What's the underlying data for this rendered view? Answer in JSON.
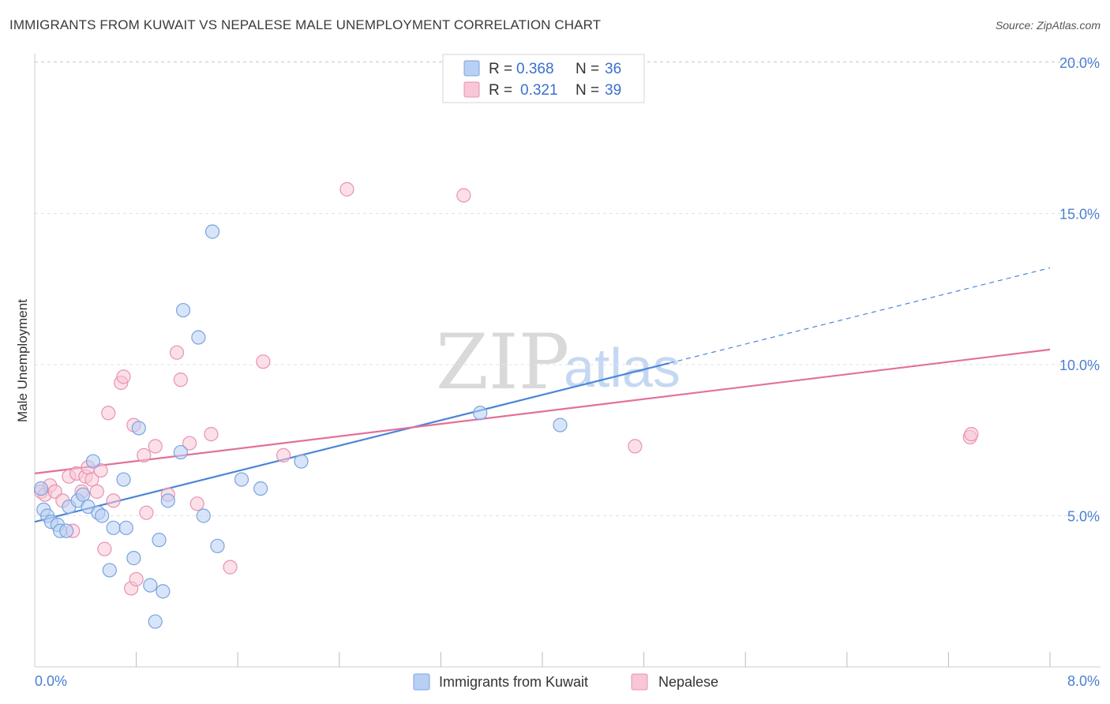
{
  "title": "IMMIGRANTS FROM KUWAIT VS NEPALESE MALE UNEMPLOYMENT CORRELATION CHART",
  "source": "Source: ZipAtlas.com",
  "watermark": {
    "zip": "ZIP",
    "atlas": "atlas"
  },
  "colors": {
    "blue": "#4a86d8",
    "blue_fill": "#b8d0f3",
    "pink": "#e3709a",
    "pink_fill": "#f8c6d6",
    "tick": "#4a7fd4"
  },
  "legend": {
    "rows": [
      {
        "r_label": "R =",
        "r_value": "0.368",
        "n_label": "N =",
        "n_value": "36"
      },
      {
        "r_label": "R =",
        "r_value": "0.321",
        "n_label": "N =",
        "n_value": "39"
      }
    ]
  },
  "bottom_legend": [
    "Immigrants from Kuwait",
    "Nepalese"
  ],
  "chart_data": {
    "type": "scatter",
    "ylabel": "Male Unemployment",
    "xlim": [
      0,
      8
    ],
    "ylim": [
      0,
      20.5
    ],
    "x_tick_labels": [
      "0.0%",
      "8.0%"
    ],
    "y_ticks": [
      5,
      10,
      15,
      20
    ],
    "y_tick_labels": [
      "5.0%",
      "10.0%",
      "15.0%",
      "20.0%"
    ],
    "grid": true,
    "legend_position": "top-center",
    "series": [
      {
        "name": "Immigrants from Kuwait",
        "color": "#4a86d8",
        "trend": {
          "x0": 0.0,
          "y0": 4.8,
          "x1": 8.0,
          "y1": 13.2,
          "solid_until": 5.0
        },
        "points": [
          [
            0.05,
            5.9
          ],
          [
            0.07,
            5.2
          ],
          [
            0.1,
            5.0
          ],
          [
            0.13,
            4.8
          ],
          [
            0.18,
            4.7
          ],
          [
            0.2,
            4.5
          ],
          [
            0.25,
            4.5
          ],
          [
            0.27,
            5.3
          ],
          [
            0.34,
            5.5
          ],
          [
            0.38,
            5.7
          ],
          [
            0.42,
            5.3
          ],
          [
            0.46,
            6.8
          ],
          [
            0.5,
            5.1
          ],
          [
            0.53,
            5.0
          ],
          [
            0.59,
            3.2
          ],
          [
            0.62,
            4.6
          ],
          [
            0.7,
            6.2
          ],
          [
            0.72,
            4.6
          ],
          [
            0.78,
            3.6
          ],
          [
            0.82,
            7.9
          ],
          [
            0.91,
            2.7
          ],
          [
            0.95,
            1.5
          ],
          [
            0.98,
            4.2
          ],
          [
            1.01,
            2.5
          ],
          [
            1.05,
            5.5
          ],
          [
            1.15,
            7.1
          ],
          [
            1.17,
            11.8
          ],
          [
            1.29,
            10.9
          ],
          [
            1.33,
            5.0
          ],
          [
            1.4,
            14.4
          ],
          [
            1.44,
            4.0
          ],
          [
            1.63,
            6.2
          ],
          [
            1.78,
            5.9
          ],
          [
            2.1,
            6.8
          ],
          [
            3.51,
            8.4
          ],
          [
            4.14,
            8.0
          ]
        ]
      },
      {
        "name": "Nepalese",
        "color": "#e3709a",
        "trend": {
          "x0": 0.0,
          "y0": 6.4,
          "x1": 8.0,
          "y1": 10.5
        },
        "points": [
          [
            0.05,
            5.8
          ],
          [
            0.08,
            5.7
          ],
          [
            0.12,
            6.0
          ],
          [
            0.16,
            5.8
          ],
          [
            0.22,
            5.5
          ],
          [
            0.27,
            6.3
          ],
          [
            0.3,
            4.5
          ],
          [
            0.33,
            6.4
          ],
          [
            0.37,
            5.8
          ],
          [
            0.4,
            6.3
          ],
          [
            0.42,
            6.6
          ],
          [
            0.45,
            6.2
          ],
          [
            0.49,
            5.8
          ],
          [
            0.52,
            6.5
          ],
          [
            0.55,
            3.9
          ],
          [
            0.58,
            8.4
          ],
          [
            0.62,
            5.5
          ],
          [
            0.68,
            9.4
          ],
          [
            0.7,
            9.6
          ],
          [
            0.76,
            2.6
          ],
          [
            0.78,
            8.0
          ],
          [
            0.8,
            2.9
          ],
          [
            0.86,
            7.0
          ],
          [
            0.88,
            5.1
          ],
          [
            0.95,
            7.3
          ],
          [
            1.05,
            5.7
          ],
          [
            1.12,
            10.4
          ],
          [
            1.15,
            9.5
          ],
          [
            1.22,
            7.4
          ],
          [
            1.28,
            5.4
          ],
          [
            1.39,
            7.7
          ],
          [
            1.54,
            3.3
          ],
          [
            1.8,
            10.1
          ],
          [
            1.96,
            7.0
          ],
          [
            2.46,
            15.8
          ],
          [
            3.38,
            15.6
          ],
          [
            4.73,
            7.3
          ],
          [
            7.37,
            7.6
          ],
          [
            7.38,
            7.7
          ]
        ]
      }
    ]
  }
}
